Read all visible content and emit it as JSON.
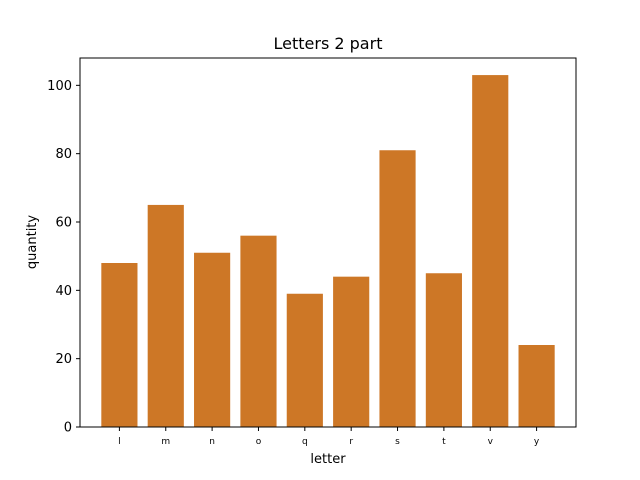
{
  "chart_data": {
    "type": "bar",
    "title": "Letters 2 part",
    "xlabel": "letter",
    "ylabel": "quantity",
    "categories": [
      "l",
      "m",
      "n",
      "o",
      "q",
      "r",
      "s",
      "t",
      "v",
      "y"
    ],
    "values": [
      48,
      65,
      51,
      56,
      39,
      44,
      81,
      45,
      103,
      24
    ],
    "ylim": [
      0,
      108
    ],
    "yticks": [
      0,
      20,
      40,
      60,
      80,
      100
    ],
    "bar_color": "#cd7726",
    "grid": false,
    "legend": "none"
  }
}
